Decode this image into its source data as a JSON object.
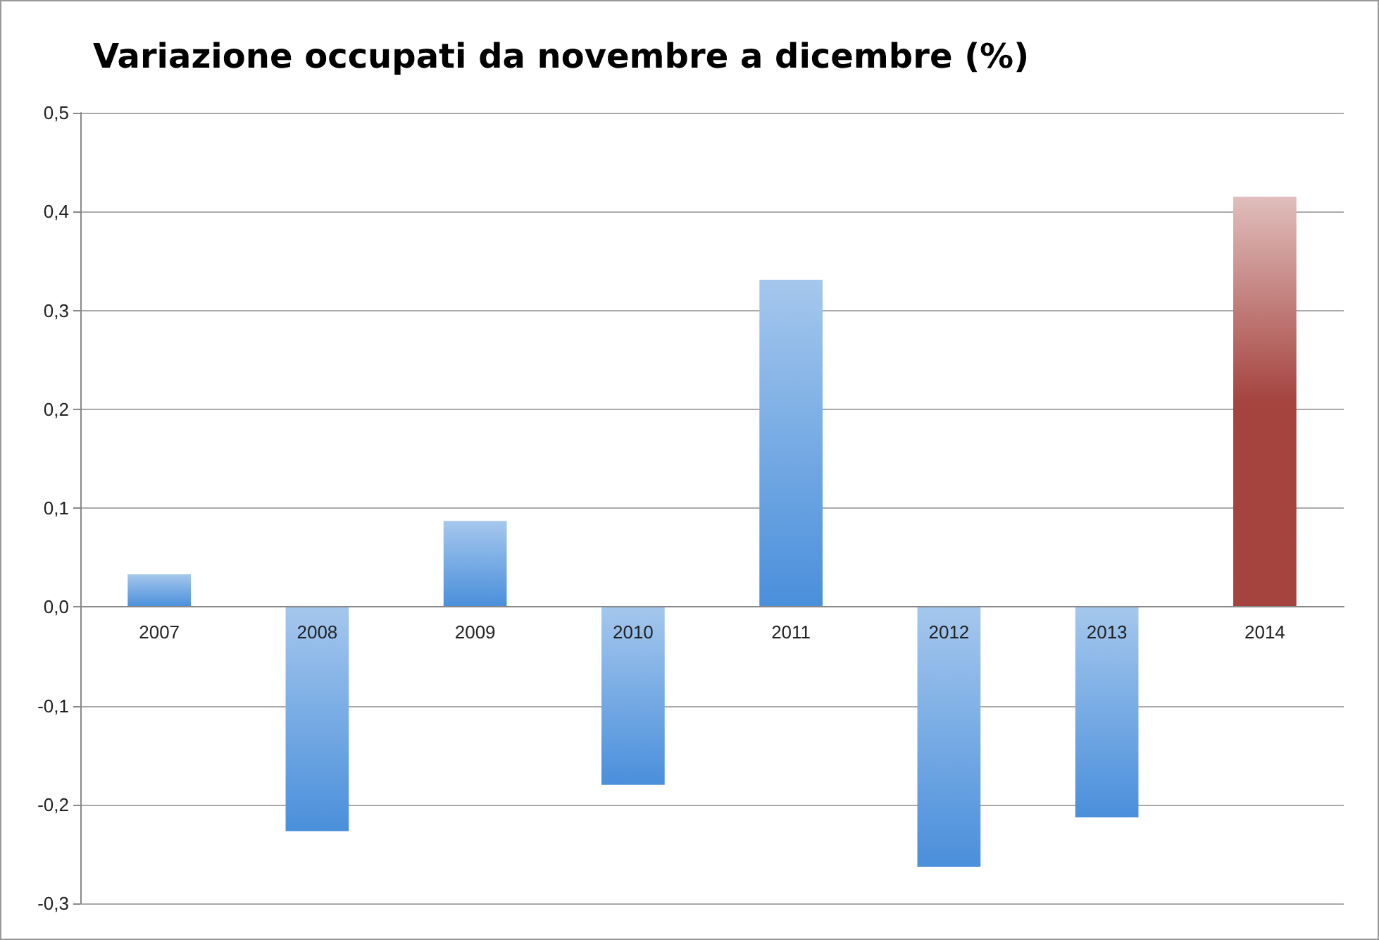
{
  "chart_data": {
    "type": "bar",
    "title": "Variazione occupati da novembre a dicembre (%)",
    "categories": [
      "2007",
      "2008",
      "2009",
      "2010",
      "2011",
      "2012",
      "2013",
      "2014"
    ],
    "values": [
      0.033,
      -0.227,
      0.087,
      -0.18,
      0.331,
      -0.263,
      -0.213,
      0.415
    ],
    "colors": [
      "#4a8fdb",
      "#4a8fdb",
      "#4a8fdb",
      "#4a8fdb",
      "#4a8fdb",
      "#4a8fdb",
      "#4a8fdb",
      "#a5443f"
    ],
    "ylim": [
      -0.3,
      0.5
    ],
    "yticks": [
      {
        "value": -0.3,
        "label": "-0,3"
      },
      {
        "value": -0.2,
        "label": "-0,2"
      },
      {
        "value": -0.1,
        "label": "-0,1"
      },
      {
        "value": 0,
        "label": "0,0"
      },
      {
        "value": 0.1,
        "label": "0,1"
      },
      {
        "value": 0.2,
        "label": "0,2"
      },
      {
        "value": 0.3,
        "label": "0,3"
      },
      {
        "value": 0.4,
        "label": "0,4"
      },
      {
        "value": 0.5,
        "label": "0,5"
      }
    ],
    "grid": "y"
  }
}
